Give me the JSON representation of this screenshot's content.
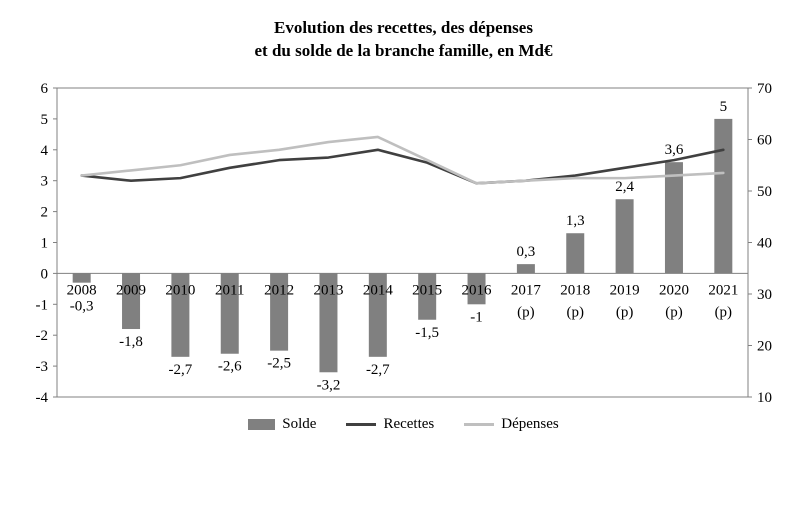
{
  "title": {
    "line1": "Evolution des recettes, des dépenses",
    "line2": "et du solde de la branche famille, en Md€"
  },
  "chart_data": {
    "type": "bar",
    "subtype": "combo-bar-line",
    "categories": [
      "2008",
      "2009",
      "2010",
      "2011",
      "2012",
      "2013",
      "2014",
      "2015",
      "2016",
      "2017 (p)",
      "2018 (p)",
      "2019 (p)",
      "2020 (p)",
      "2021 (p)"
    ],
    "bar_series": {
      "name": "Solde",
      "axis": "left",
      "values": [
        -0.3,
        -1.8,
        -2.7,
        -2.6,
        -2.5,
        -3.2,
        -2.7,
        -1.5,
        -1,
        0.3,
        1.3,
        2.4,
        3.6,
        5
      ],
      "labels": [
        "-0,3",
        "-1,8",
        "-2,7",
        "-2,6",
        "-2,5",
        "-3,2",
        "-2,7",
        "-1,5",
        "-1",
        "0,3",
        "1,3",
        "2,4",
        "3,6",
        "5"
      ]
    },
    "line_series": [
      {
        "name": "Recettes",
        "axis": "right",
        "color": "#404040",
        "values": [
          53,
          52,
          52.5,
          54.5,
          56,
          56.5,
          58,
          55.5,
          51.5,
          52,
          53,
          54.5,
          56,
          58
        ]
      },
      {
        "name": "Dépenses",
        "axis": "right",
        "color": "#bfbfbf",
        "values": [
          53,
          54,
          55,
          57,
          58,
          59.5,
          60.5,
          56,
          51.5,
          52,
          52.5,
          52.5,
          53,
          53.5
        ]
      }
    ],
    "left_axis": {
      "min": -4,
      "max": 6,
      "step": 1,
      "tick_labels": [
        "6",
        "5",
        "4",
        "3",
        "2",
        "1",
        "0",
        "-1",
        "-2",
        "-3",
        "-4"
      ]
    },
    "right_axis": {
      "tick_labels": [
        "70",
        "60",
        "50",
        "40",
        "30",
        "20",
        "10"
      ],
      "max": 70,
      "min": 10
    },
    "colors": {
      "solde": "#808080",
      "axis": "#808080",
      "text": "#000000"
    },
    "legend_position": "bottom",
    "grid": false
  }
}
